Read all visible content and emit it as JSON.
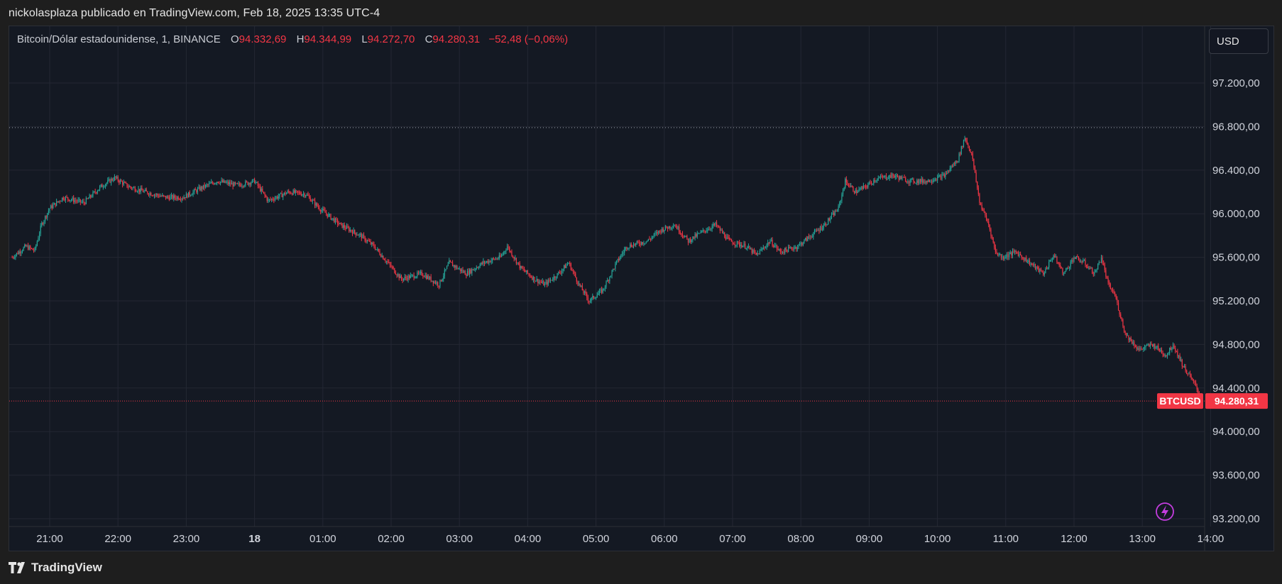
{
  "header": {
    "title": "nickolasplaza publicado en TradingView.com, Feb 18, 2025 13:35 UTC-4"
  },
  "legend": {
    "symbol": "Bitcoin/Dólar estadounidense, 1, BINANCE",
    "o_label": "O",
    "o_value": "94.332,69",
    "h_label": "H",
    "h_value": "94.344,99",
    "l_label": "L",
    "l_value": "94.272,70",
    "c_label": "C",
    "c_value": "94.280,31",
    "change": "−52,48 (−0,06%)"
  },
  "currency_button": {
    "label": "USD"
  },
  "price_badge": {
    "symbol": "BTCUSD",
    "price": "94.280,31"
  },
  "footer": {
    "brand": "TradingView",
    "logo_icon": "tradingview-logo-icon"
  },
  "colors": {
    "up": "#26a69a",
    "down": "#f23645",
    "background": "#141923",
    "grid": "#232733",
    "axis_text": "#d1d4dc",
    "session_line": "#9aa0aa"
  },
  "chart_data": {
    "type": "candlestick",
    "title": "Bitcoin/Dólar estadounidense, 1, BINANCE",
    "ylim": [
      93100,
      97550
    ],
    "y_ticks": [
      "93.200,00",
      "93.600,00",
      "94.000,00",
      "94.400,00",
      "94.800,00",
      "95.200,00",
      "95.600,00",
      "96.000,00",
      "96.400,00",
      "96.800,00",
      "97.200,00"
    ],
    "y_tick_values": [
      93200,
      93600,
      94000,
      94400,
      94800,
      95200,
      95600,
      96000,
      96400,
      96800,
      97200
    ],
    "x_ticks": [
      {
        "label": "21:00",
        "t": 21.0
      },
      {
        "label": "22:00",
        "t": 22.0
      },
      {
        "label": "23:00",
        "t": 23.0
      },
      {
        "label": "18",
        "t": 24.0,
        "bold": true
      },
      {
        "label": "01:00",
        "t": 25.0
      },
      {
        "label": "02:00",
        "t": 26.0
      },
      {
        "label": "03:00",
        "t": 27.0
      },
      {
        "label": "04:00",
        "t": 28.0
      },
      {
        "label": "05:00",
        "t": 29.0
      },
      {
        "label": "06:00",
        "t": 30.0
      },
      {
        "label": "07:00",
        "t": 31.0
      },
      {
        "label": "08:00",
        "t": 32.0
      },
      {
        "label": "09:00",
        "t": 33.0
      },
      {
        "label": "10:00",
        "t": 34.0
      },
      {
        "label": "11:00",
        "t": 35.0
      },
      {
        "label": "12:00",
        "t": 36.0
      },
      {
        "label": "13:00",
        "t": 37.0
      },
      {
        "label": "14:00",
        "t": 38.0
      }
    ],
    "session_high_line": 96790,
    "last_price": 94280.31,
    "price_path": [
      {
        "t": 20.45,
        "p": 95600
      },
      {
        "t": 20.55,
        "p": 95650
      },
      {
        "t": 20.65,
        "p": 95700
      },
      {
        "t": 20.78,
        "p": 95660
      },
      {
        "t": 20.88,
        "p": 95900
      },
      {
        "t": 21.0,
        "p": 96050
      },
      {
        "t": 21.2,
        "p": 96150
      },
      {
        "t": 21.5,
        "p": 96100
      },
      {
        "t": 21.75,
        "p": 96250
      },
      {
        "t": 21.95,
        "p": 96330
      },
      {
        "t": 22.15,
        "p": 96250
      },
      {
        "t": 22.4,
        "p": 96200
      },
      {
        "t": 22.7,
        "p": 96150
      },
      {
        "t": 22.95,
        "p": 96150
      },
      {
        "t": 23.2,
        "p": 96230
      },
      {
        "t": 23.45,
        "p": 96300
      },
      {
        "t": 23.75,
        "p": 96260
      },
      {
        "t": 24.0,
        "p": 96300
      },
      {
        "t": 24.2,
        "p": 96120
      },
      {
        "t": 24.5,
        "p": 96200
      },
      {
        "t": 24.75,
        "p": 96180
      },
      {
        "t": 24.95,
        "p": 96050
      },
      {
        "t": 25.25,
        "p": 95900
      },
      {
        "t": 25.55,
        "p": 95800
      },
      {
        "t": 25.75,
        "p": 95700
      },
      {
        "t": 25.95,
        "p": 95550
      },
      {
        "t": 26.15,
        "p": 95400
      },
      {
        "t": 26.45,
        "p": 95450
      },
      {
        "t": 26.7,
        "p": 95350
      },
      {
        "t": 26.85,
        "p": 95550
      },
      {
        "t": 27.1,
        "p": 95450
      },
      {
        "t": 27.35,
        "p": 95550
      },
      {
        "t": 27.6,
        "p": 95600
      },
      {
        "t": 27.7,
        "p": 95700
      },
      {
        "t": 27.9,
        "p": 95500
      },
      {
        "t": 28.1,
        "p": 95400
      },
      {
        "t": 28.25,
        "p": 95350
      },
      {
        "t": 28.45,
        "p": 95450
      },
      {
        "t": 28.6,
        "p": 95550
      },
      {
        "t": 28.75,
        "p": 95350
      },
      {
        "t": 28.9,
        "p": 95200
      },
      {
        "t": 29.1,
        "p": 95300
      },
      {
        "t": 29.3,
        "p": 95550
      },
      {
        "t": 29.45,
        "p": 95700
      },
      {
        "t": 29.75,
        "p": 95750
      },
      {
        "t": 29.95,
        "p": 95850
      },
      {
        "t": 30.15,
        "p": 95900
      },
      {
        "t": 30.35,
        "p": 95750
      },
      {
        "t": 30.6,
        "p": 95850
      },
      {
        "t": 30.75,
        "p": 95900
      },
      {
        "t": 30.95,
        "p": 95750
      },
      {
        "t": 31.2,
        "p": 95700
      },
      {
        "t": 31.35,
        "p": 95620
      },
      {
        "t": 31.55,
        "p": 95750
      },
      {
        "t": 31.7,
        "p": 95650
      },
      {
        "t": 31.95,
        "p": 95700
      },
      {
        "t": 32.15,
        "p": 95800
      },
      {
        "t": 32.35,
        "p": 95900
      },
      {
        "t": 32.55,
        "p": 96050
      },
      {
        "t": 32.65,
        "p": 96300
      },
      {
        "t": 32.8,
        "p": 96200
      },
      {
        "t": 32.95,
        "p": 96250
      },
      {
        "t": 33.1,
        "p": 96320
      },
      {
        "t": 33.35,
        "p": 96350
      },
      {
        "t": 33.6,
        "p": 96300
      },
      {
        "t": 33.85,
        "p": 96300
      },
      {
        "t": 34.1,
        "p": 96350
      },
      {
        "t": 34.3,
        "p": 96500
      },
      {
        "t": 34.4,
        "p": 96700
      },
      {
        "t": 34.5,
        "p": 96550
      },
      {
        "t": 34.62,
        "p": 96100
      },
      {
        "t": 34.75,
        "p": 95900
      },
      {
        "t": 34.85,
        "p": 95650
      },
      {
        "t": 34.95,
        "p": 95600
      },
      {
        "t": 35.15,
        "p": 95650
      },
      {
        "t": 35.35,
        "p": 95550
      },
      {
        "t": 35.55,
        "p": 95450
      },
      {
        "t": 35.7,
        "p": 95620
      },
      {
        "t": 35.85,
        "p": 95450
      },
      {
        "t": 36.0,
        "p": 95600
      },
      {
        "t": 36.15,
        "p": 95550
      },
      {
        "t": 36.3,
        "p": 95450
      },
      {
        "t": 36.4,
        "p": 95600
      },
      {
        "t": 36.5,
        "p": 95350
      },
      {
        "t": 36.6,
        "p": 95250
      },
      {
        "t": 36.75,
        "p": 94900
      },
      {
        "t": 36.95,
        "p": 94750
      },
      {
        "t": 37.15,
        "p": 94800
      },
      {
        "t": 37.35,
        "p": 94700
      },
      {
        "t": 37.45,
        "p": 94800
      },
      {
        "t": 37.6,
        "p": 94600
      },
      {
        "t": 37.8,
        "p": 94400
      },
      {
        "t": 37.85,
        "p": 94280
      }
    ]
  }
}
